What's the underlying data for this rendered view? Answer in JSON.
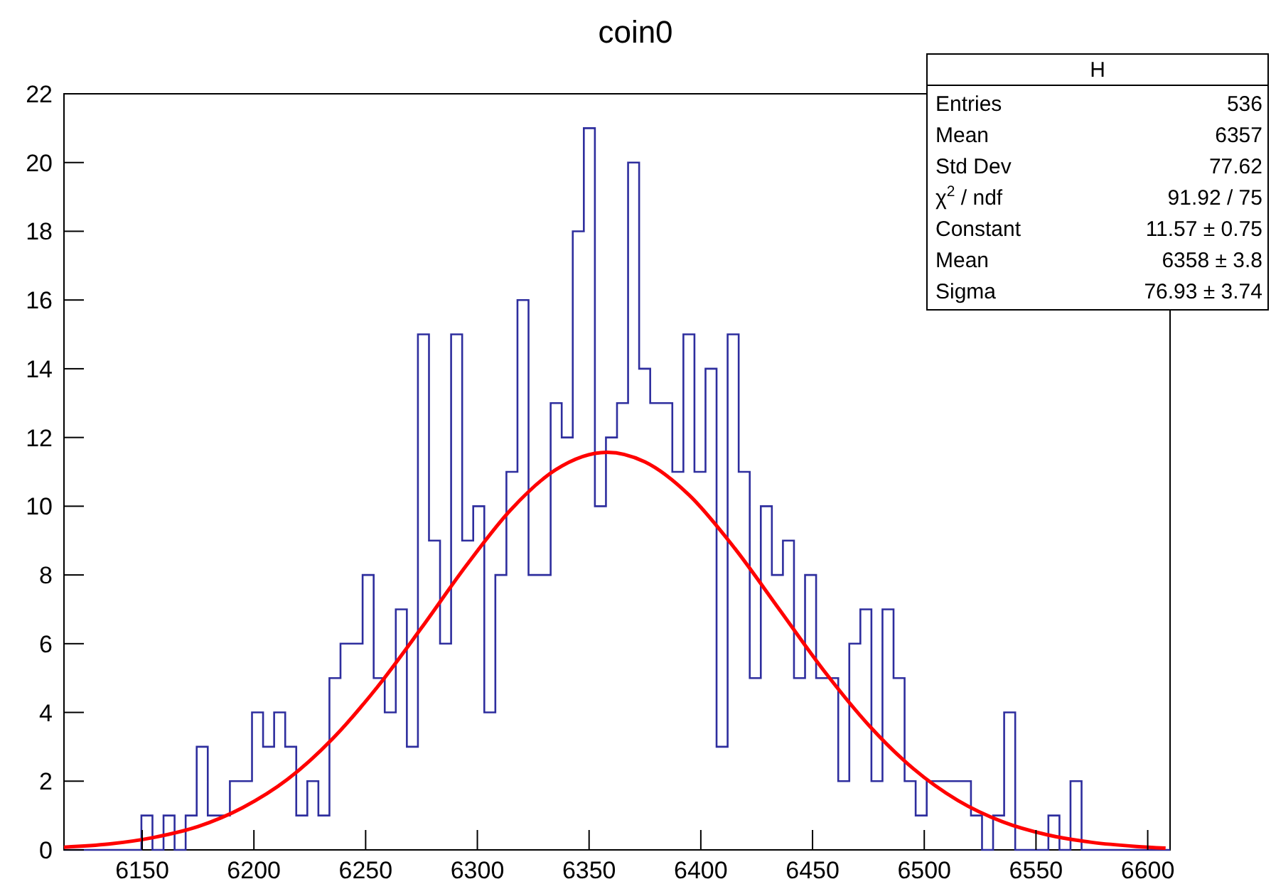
{
  "chart_data": {
    "type": "histogram",
    "title": "coin0",
    "bins": [
      6115,
      6119.95,
      6124.9,
      6129.85,
      6134.8,
      6139.75,
      6144.7,
      6149.65,
      6154.6,
      6159.55,
      6164.5,
      6169.45,
      6174.4,
      6179.35,
      6184.3,
      6189.25,
      6194.2,
      6199.15,
      6204.1,
      6209.05,
      6214,
      6218.95,
      6223.9,
      6228.85,
      6233.8,
      6238.75,
      6243.7,
      6248.65,
      6253.6,
      6258.55,
      6263.5,
      6268.45,
      6273.4,
      6278.35,
      6283.3,
      6288.25,
      6293.2,
      6298.15,
      6303.1,
      6308.05,
      6313,
      6317.95,
      6322.9,
      6327.85,
      6332.8,
      6337.75,
      6342.7,
      6347.65,
      6352.6,
      6357.55,
      6362.5,
      6367.45,
      6372.4,
      6377.35,
      6382.3,
      6387.25,
      6392.2,
      6397.15,
      6402.1,
      6407.05,
      6412,
      6416.95,
      6421.9,
      6426.85,
      6431.8,
      6436.75,
      6441.7,
      6446.65,
      6451.6,
      6456.55,
      6461.5,
      6466.45,
      6471.4,
      6476.35,
      6481.3,
      6486.25,
      6491.2,
      6496.15,
      6501.1,
      6506.05,
      6511,
      6515.95,
      6520.9,
      6525.85,
      6530.8,
      6535.75,
      6540.7,
      6545.65,
      6550.6,
      6555.55,
      6560.5,
      6565.45,
      6570.4,
      6575.35,
      6580.3,
      6585.25,
      6590.2,
      6595.15,
      6600.1,
      6605.05,
      6610
    ],
    "values": [
      0,
      0,
      0,
      0,
      0,
      0,
      0,
      1,
      0,
      1,
      0,
      1,
      3,
      1,
      1,
      2,
      2,
      4,
      3,
      4,
      3,
      1,
      2,
      1,
      5,
      6,
      6,
      8,
      5,
      4,
      7,
      3,
      15,
      9,
      6,
      15,
      9,
      10,
      4,
      8,
      11,
      16,
      8,
      8,
      13,
      12,
      18,
      21,
      10,
      12,
      13,
      20,
      14,
      13,
      13,
      11,
      15,
      11,
      14,
      3,
      15,
      11,
      5,
      10,
      8,
      9,
      5,
      8,
      5,
      5,
      2,
      6,
      7,
      2,
      7,
      5,
      2,
      1,
      2,
      2,
      2,
      2,
      1,
      0,
      1,
      4,
      0,
      0,
      0,
      1,
      0,
      2,
      0,
      0,
      0,
      0,
      0,
      0,
      0,
      0
    ],
    "color": "#2e2e9e",
    "series": [
      {
        "type": "line",
        "color": "#ff0000",
        "x": [
          6115,
          6135,
          6155,
          6175,
          6195,
          6215,
          6235,
          6255,
          6275,
          6295,
          6315,
          6335,
          6358,
          6375,
          6395,
          6415,
          6435,
          6455,
          6475,
          6495,
          6515,
          6535,
          6555,
          6575,
          6595,
          6608
        ],
        "values": [
          0.08,
          0.17,
          0.36,
          0.68,
          1.23,
          2.05,
          3.22,
          4.72,
          6.46,
          8.27,
          9.9,
          11.06,
          11.57,
          11.29,
          10.31,
          8.79,
          7.01,
          5.22,
          3.64,
          2.37,
          1.44,
          0.82,
          0.44,
          0.22,
          0.1,
          0.05
        ]
      }
    ],
    "xlim": [
      6115,
      6610
    ],
    "xticks": [
      6150,
      6200,
      6250,
      6300,
      6350,
      6400,
      6450,
      6500,
      6550,
      6600
    ],
    "ylim": [
      0,
      22
    ],
    "yticks": [
      0,
      2,
      4,
      6,
      8,
      10,
      12,
      14,
      16,
      18,
      20,
      22
    ],
    "annotations": [
      "H",
      "Entries",
      "536",
      "Mean",
      "6357",
      "Std Dev",
      "77.62",
      "χ$^{2}$ / ndf",
      "91.92 / 75",
      "Constant",
      "11.57 ± 0.75",
      "Mean",
      "6358 ± 3.8",
      "Sigma",
      "76.93 ± 3.74"
    ]
  }
}
